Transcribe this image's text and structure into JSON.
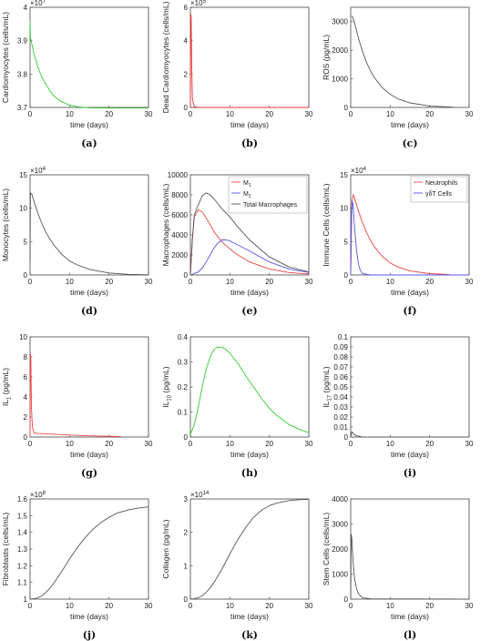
{
  "chart_data": [
    {
      "id": "a",
      "caption": "(a)",
      "type": "line",
      "xlabel": "time (days)",
      "ylabel": "Cardiomyocytes (cells/mL)",
      "xlim": [
        0,
        30
      ],
      "ylim": [
        3.7,
        4.0
      ],
      "exponent": "×10^7",
      "xticks": [
        "0",
        "10",
        "20",
        "30"
      ],
      "yticks": [
        {
          "v": 3.7,
          "label": "3.7"
        },
        {
          "v": 3.8,
          "label": "3.8"
        },
        {
          "v": 3.9,
          "label": "3.9"
        },
        {
          "v": 4.0,
          "label": "4"
        }
      ],
      "series": [
        {
          "color": "#33cc33",
          "x": [
            0,
            0.1,
            1,
            2,
            3,
            4,
            5,
            6,
            7,
            8,
            10,
            12,
            15,
            20,
            25,
            30
          ],
          "y": [
            3.96,
            3.91,
            3.86,
            3.82,
            3.79,
            3.77,
            3.75,
            3.735,
            3.725,
            3.717,
            3.707,
            3.702,
            3.699,
            3.698,
            3.698,
            3.698
          ]
        }
      ]
    },
    {
      "id": "b",
      "caption": "(b)",
      "type": "line",
      "xlabel": "time (days)",
      "ylabel": "Dead Cardiomyocytes (cells/mL)",
      "xlim": [
        0,
        30
      ],
      "ylim": [
        0,
        6
      ],
      "exponent": "×10^5",
      "xticks": [
        "0",
        "10",
        "20",
        "30"
      ],
      "yticks": [
        {
          "v": 0,
          "label": "0"
        },
        {
          "v": 2,
          "label": "2"
        },
        {
          "v": 4,
          "label": "4"
        },
        {
          "v": 6,
          "label": "6"
        }
      ],
      "series": [
        {
          "color": "#ee3333",
          "x": [
            0,
            0.1,
            0.2,
            0.35,
            0.5,
            1,
            2,
            30
          ],
          "y": [
            0,
            5.6,
            5.4,
            2.5,
            0.5,
            0.05,
            0,
            0
          ]
        }
      ]
    },
    {
      "id": "c",
      "caption": "(c)",
      "type": "line",
      "xlabel": "time (days)",
      "ylabel": "ROS (pg/mL)",
      "xlim": [
        0,
        30
      ],
      "ylim": [
        0,
        3500
      ],
      "xticks": [
        "0",
        "10",
        "20",
        "30"
      ],
      "yticks": [
        {
          "v": 0,
          "label": "0"
        },
        {
          "v": 1000,
          "label": "1000"
        },
        {
          "v": 2000,
          "label": "2000"
        },
        {
          "v": 3000,
          "label": "3000"
        }
      ],
      "series": [
        {
          "color": "#555555",
          "x": [
            0.3,
            0.5,
            1,
            2,
            3,
            4,
            5,
            6,
            8,
            10,
            12,
            15,
            20,
            26
          ],
          "y": [
            3200,
            3150,
            2950,
            2400,
            1950,
            1580,
            1280,
            1040,
            690,
            460,
            300,
            160,
            50,
            10
          ]
        }
      ]
    },
    {
      "id": "d",
      "caption": "(d)",
      "type": "line",
      "xlabel": "time (days)",
      "ylabel": "Monocytes (cells/mL)",
      "xlim": [
        0,
        30
      ],
      "ylim": [
        0,
        15
      ],
      "exponent": "×10^4",
      "xticks": [
        "0",
        "10",
        "20",
        "30"
      ],
      "yticks": [
        {
          "v": 0,
          "label": "0"
        },
        {
          "v": 5,
          "label": "5"
        },
        {
          "v": 10,
          "label": "10"
        },
        {
          "v": 15,
          "label": "15"
        }
      ],
      "series": [
        {
          "color": "#555555",
          "x": [
            0,
            0.1,
            0.5,
            1,
            2,
            3,
            4,
            5,
            6,
            8,
            10,
            12,
            15,
            20,
            25,
            30
          ],
          "y": [
            2,
            12.3,
            12,
            11,
            9.2,
            7.7,
            6.4,
            5.4,
            4.5,
            3.1,
            2.1,
            1.5,
            0.85,
            0.3,
            0.1,
            0.03
          ]
        }
      ]
    },
    {
      "id": "e",
      "caption": "(e)",
      "type": "line",
      "xlabel": "time (days)",
      "ylabel": "Macrophages (cells/mL)",
      "xlim": [
        0,
        30
      ],
      "ylim": [
        0,
        10000
      ],
      "legend": "top-right",
      "xticks": [
        "0",
        "10",
        "20",
        "30"
      ],
      "yticks": [
        {
          "v": 0,
          "label": "0"
        },
        {
          "v": 2000,
          "label": "2000"
        },
        {
          "v": 4000,
          "label": "4000"
        },
        {
          "v": 6000,
          "label": "6000"
        },
        {
          "v": 8000,
          "label": "8000"
        },
        {
          "v": 10000,
          "label": "10000"
        }
      ],
      "series": [
        {
          "name": "M",
          "sub": "1",
          "color": "#ee4444",
          "x": [
            0,
            0.5,
            1,
            2,
            3,
            4,
            5,
            6,
            8,
            10,
            12,
            15,
            20,
            25,
            30
          ],
          "y": [
            0,
            3500,
            5800,
            6500,
            6300,
            5700,
            5000,
            4300,
            3300,
            2600,
            2000,
            1300,
            600,
            250,
            100
          ]
        },
        {
          "name": "M",
          "sub": "2",
          "color": "#5555ee",
          "x": [
            0,
            2,
            3,
            4,
            5,
            6,
            7,
            8,
            9,
            10,
            12,
            15,
            20,
            25,
            30
          ],
          "y": [
            0,
            300,
            700,
            1300,
            2000,
            2700,
            3200,
            3500,
            3500,
            3400,
            3000,
            2400,
            1300,
            600,
            250
          ]
        },
        {
          "name": "Total Macrophages",
          "color": "#555555",
          "x": [
            0,
            0.5,
            1,
            2,
            3,
            4,
            5,
            6,
            8,
            10,
            12,
            15,
            20,
            25,
            30
          ],
          "y": [
            0,
            3600,
            6000,
            7000,
            7900,
            8200,
            8000,
            7600,
            6600,
            5800,
            4800,
            3500,
            1800,
            800,
            300
          ]
        }
      ]
    },
    {
      "id": "f",
      "caption": "(f)",
      "type": "line",
      "xlabel": "time (days)",
      "ylabel": "Immune Cells (cells/mL)",
      "xlim": [
        0,
        30
      ],
      "ylim": [
        0,
        15
      ],
      "exponent": "×10^4",
      "legend": "top-right",
      "xticks": [
        "0",
        "10",
        "20",
        "30"
      ],
      "yticks": [
        {
          "v": 0,
          "label": "0"
        },
        {
          "v": 5,
          "label": "5"
        },
        {
          "v": 10,
          "label": "10"
        },
        {
          "v": 15,
          "label": "15"
        }
      ],
      "series": [
        {
          "name": "Neutrophils",
          "color": "#ee4444",
          "x": [
            0,
            0.3,
            0.7,
            1,
            2,
            3,
            4,
            5,
            6,
            8,
            10,
            12,
            15,
            20,
            25
          ],
          "y": [
            0,
            11,
            12,
            11.5,
            9.5,
            7.8,
            6.4,
            5.2,
            4.2,
            2.8,
            1.8,
            1.2,
            0.6,
            0.2,
            0.05
          ]
        },
        {
          "name": "γδT Cells",
          "color": "#5555ee",
          "x": [
            0,
            0.2,
            0.4,
            0.6,
            1,
            1.5,
            2,
            2.5,
            3,
            5,
            30
          ],
          "y": [
            0,
            9,
            11,
            10.5,
            7,
            3.5,
            1.5,
            0.6,
            0.2,
            0,
            0
          ]
        }
      ]
    },
    {
      "id": "g",
      "caption": "(g)",
      "type": "line",
      "xlabel": "time (days)",
      "ylabel": "IL",
      "ylabel_sub": "1",
      "ylabel_unit": " (pg/mL)",
      "xlim": [
        0,
        30
      ],
      "ylim": [
        0,
        10
      ],
      "xticks": [
        "0",
        "10",
        "20",
        "30"
      ],
      "yticks": [
        {
          "v": 0,
          "label": "0"
        },
        {
          "v": 2,
          "label": "2"
        },
        {
          "v": 4,
          "label": "4"
        },
        {
          "v": 6,
          "label": "6"
        },
        {
          "v": 8,
          "label": "8"
        },
        {
          "v": 10,
          "label": "10"
        }
      ],
      "series": [
        {
          "color": "#ee4444",
          "x": [
            0,
            0.1,
            0.2,
            0.35,
            0.6,
            1,
            2,
            5,
            10,
            15,
            23
          ],
          "y": [
            0,
            8.3,
            7.8,
            3,
            1,
            0.4,
            0.35,
            0.3,
            0.2,
            0.12,
            0.05
          ]
        }
      ]
    },
    {
      "id": "h",
      "caption": "(h)",
      "type": "line",
      "xlabel": "time (days)",
      "ylabel": "IL",
      "ylabel_sub": "10",
      "ylabel_unit": " (pg/mL)",
      "xlim": [
        0,
        30
      ],
      "ylim": [
        0,
        0.4
      ],
      "xticks": [
        "0",
        "10",
        "20",
        "30"
      ],
      "yticks": [
        {
          "v": 0,
          "label": "0"
        },
        {
          "v": 0.1,
          "label": "0.1"
        },
        {
          "v": 0.2,
          "label": "0.2"
        },
        {
          "v": 0.3,
          "label": "0.3"
        },
        {
          "v": 0.4,
          "label": "0.4"
        }
      ],
      "series": [
        {
          "color": "#33cc33",
          "x": [
            0,
            1,
            2,
            3,
            4,
            5,
            6,
            7,
            8,
            9,
            10,
            12,
            14,
            16,
            18,
            20,
            22,
            25,
            28,
            30
          ],
          "y": [
            0.01,
            0.05,
            0.12,
            0.2,
            0.27,
            0.32,
            0.35,
            0.36,
            0.358,
            0.35,
            0.335,
            0.295,
            0.245,
            0.2,
            0.155,
            0.115,
            0.085,
            0.05,
            0.028,
            0.018
          ]
        }
      ]
    },
    {
      "id": "i",
      "caption": "(i)",
      "type": "line",
      "xlabel": "time (days)",
      "ylabel": "IL",
      "ylabel_sub": "17",
      "ylabel_unit": " (pg/mL)",
      "xlim": [
        0,
        30
      ],
      "ylim": [
        0,
        0.1
      ],
      "xticks": [
        "0",
        "10",
        "20",
        "30"
      ],
      "yticks": [
        {
          "v": 0,
          "label": "0"
        },
        {
          "v": 0.01,
          "label": "0.01"
        },
        {
          "v": 0.02,
          "label": "0.02"
        },
        {
          "v": 0.03,
          "label": "0.03"
        },
        {
          "v": 0.04,
          "label": "0.04"
        },
        {
          "v": 0.05,
          "label": "0.05"
        },
        {
          "v": 0.06,
          "label": "0.06"
        },
        {
          "v": 0.07,
          "label": "0.07"
        },
        {
          "v": 0.08,
          "label": "0.08"
        },
        {
          "v": 0.09,
          "label": "0.09"
        },
        {
          "v": 0.1,
          "label": "0.1"
        }
      ],
      "series": [
        {
          "color": "#555555",
          "x": [
            0,
            0.3,
            0.6,
            1,
            2,
            3,
            5,
            30
          ],
          "y": [
            0,
            0.005,
            0.004,
            0.002,
            0.001,
            0,
            0,
            0
          ]
        }
      ]
    },
    {
      "id": "j",
      "caption": "(j)",
      "type": "line",
      "xlabel": "time (days)",
      "ylabel": "Fibroblasts (cells/mL)",
      "xlim": [
        0,
        30
      ],
      "ylim": [
        1.0,
        1.6
      ],
      "exponent": "×10^8",
      "xticks": [
        "0",
        "10",
        "20",
        "30"
      ],
      "yticks": [
        {
          "v": 1.0,
          "label": "1"
        },
        {
          "v": 1.1,
          "label": "1.1"
        },
        {
          "v": 1.2,
          "label": "1.2"
        },
        {
          "v": 1.3,
          "label": "1.3"
        },
        {
          "v": 1.4,
          "label": "1.4"
        },
        {
          "v": 1.5,
          "label": "1.5"
        },
        {
          "v": 1.6,
          "label": "1.6"
        }
      ],
      "series": [
        {
          "color": "#555555",
          "x": [
            0,
            1,
            2,
            3,
            4,
            5,
            6,
            8,
            10,
            12,
            14,
            16,
            18,
            20,
            22,
            25,
            28,
            30
          ],
          "y": [
            1.0,
            1.002,
            1.008,
            1.02,
            1.04,
            1.065,
            1.095,
            1.165,
            1.24,
            1.31,
            1.37,
            1.42,
            1.46,
            1.49,
            1.515,
            1.535,
            1.547,
            1.552
          ]
        }
      ]
    },
    {
      "id": "k",
      "caption": "(k)",
      "type": "line",
      "xlabel": "time (days)",
      "ylabel": "Collagen (pg/mL)",
      "xlim": [
        0,
        30
      ],
      "ylim": [
        0,
        3
      ],
      "exponent": "×10^14",
      "xticks": [
        "0",
        "10",
        "20",
        "30"
      ],
      "yticks": [
        {
          "v": 0,
          "label": "0"
        },
        {
          "v": 1,
          "label": "1"
        },
        {
          "v": 2,
          "label": "2"
        },
        {
          "v": 3,
          "label": "3"
        }
      ],
      "series": [
        {
          "color": "#555555",
          "x": [
            0,
            1,
            2,
            3,
            4,
            5,
            6,
            8,
            10,
            12,
            14,
            16,
            18,
            20,
            22,
            25,
            28,
            30
          ],
          "y": [
            0,
            0.01,
            0.04,
            0.1,
            0.2,
            0.34,
            0.5,
            0.9,
            1.35,
            1.78,
            2.15,
            2.45,
            2.66,
            2.8,
            2.88,
            2.95,
            2.98,
            2.99
          ]
        }
      ]
    },
    {
      "id": "l",
      "caption": "(l)",
      "type": "line",
      "xlabel": "time (days)",
      "ylabel": "Stem Cells (cells/mL)",
      "xlim": [
        0,
        30
      ],
      "ylim": [
        0,
        4000
      ],
      "xticks": [
        "0",
        "10",
        "20",
        "30"
      ],
      "yticks": [
        {
          "v": 0,
          "label": "0"
        },
        {
          "v": 1000,
          "label": "1000"
        },
        {
          "v": 2000,
          "label": "2000"
        },
        {
          "v": 3000,
          "label": "3000"
        },
        {
          "v": 4000,
          "label": "4000"
        }
      ],
      "series": [
        {
          "color": "#555555",
          "x": [
            0,
            0.15,
            0.3,
            0.6,
            1,
            1.5,
            2,
            3,
            5,
            30
          ],
          "y": [
            0,
            2600,
            2400,
            1500,
            800,
            400,
            200,
            60,
            10,
            0
          ]
        }
      ]
    }
  ]
}
